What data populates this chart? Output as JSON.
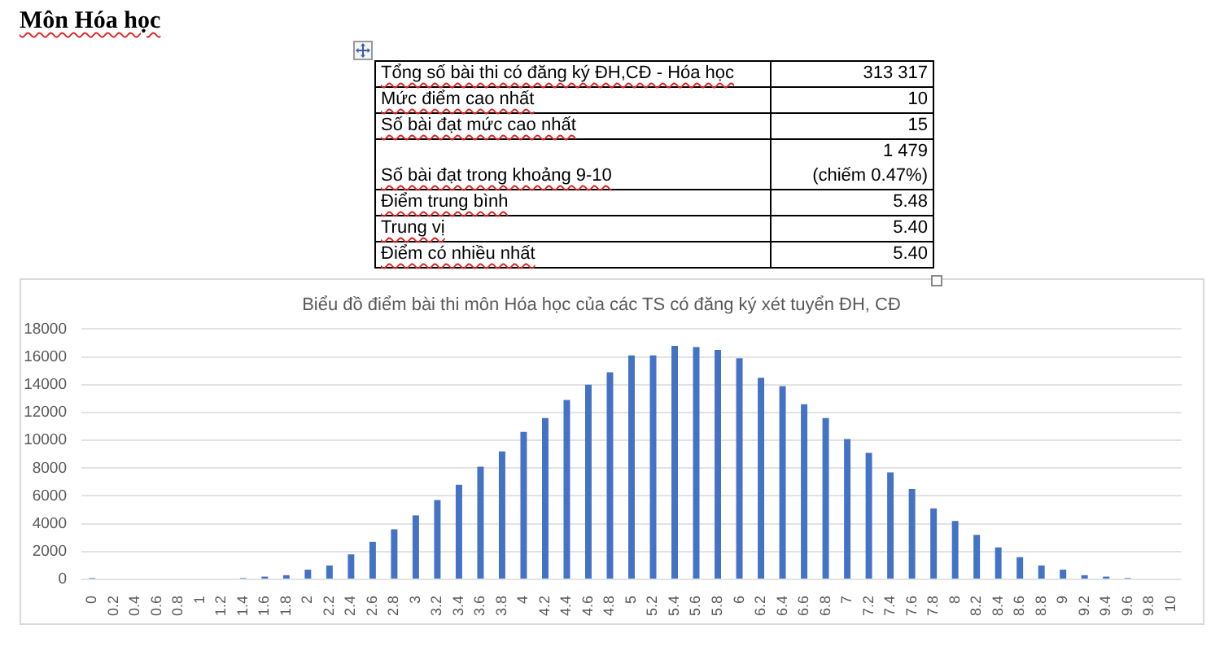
{
  "chart_data": {
    "type": "bar",
    "title": "Biểu đồ điểm bài thi môn Hóa học của các TS có đăng ký xét tuyển ĐH, CĐ",
    "categories": [
      "0",
      "0.2",
      "0.4",
      "0.6",
      "0.8",
      "1",
      "1.2",
      "1.4",
      "1.6",
      "1.8",
      "2",
      "2.2",
      "2.4",
      "2.6",
      "2.8",
      "3",
      "3.2",
      "3.4",
      "3.6",
      "3.8",
      "4",
      "4.2",
      "4.4",
      "4.6",
      "4.8",
      "5",
      "5.2",
      "5.4",
      "5.6",
      "5.8",
      "6",
      "6.2",
      "6.4",
      "6.6",
      "6.8",
      "7",
      "7.2",
      "7.4",
      "7.6",
      "7.8",
      "8",
      "8.2",
      "8.4",
      "8.6",
      "8.8",
      "9",
      "9.2",
      "9.4",
      "9.6",
      "9.8",
      "10"
    ],
    "values": [
      100,
      0,
      0,
      0,
      0,
      0,
      0,
      100,
      200,
      300,
      700,
      1000,
      1800,
      2700,
      3600,
      4600,
      5700,
      6800,
      8100,
      9200,
      10600,
      11600,
      12900,
      14000,
      14900,
      16100,
      16100,
      16800,
      16700,
      16500,
      15900,
      14500,
      13900,
      12600,
      11600,
      10100,
      9100,
      7700,
      6500,
      5100,
      4200,
      3200,
      2300,
      1600,
      1000,
      700,
      300,
      200,
      100,
      0,
      0
    ],
    "color": "#4472c4",
    "ylim": [
      0,
      18000
    ],
    "yticks": [
      0,
      2000,
      4000,
      6000,
      8000,
      10000,
      12000,
      14000,
      16000,
      18000
    ],
    "grid": "y",
    "legend": false,
    "annotations": [
      "Môn Hóa học",
      "Tổng số bài thi có đăng ký ĐH,CĐ - Hóa học",
      "313 317",
      "Mức điểm cao nhất",
      "10",
      "Số bài đạt mức cao nhất",
      "15",
      "Số bài đạt trong khoảng 9-10",
      "1 479\n(chiếm 0.47%)",
      "Điểm trung bình",
      "5.48",
      "Trung vị",
      "5.40",
      "Điểm có nhiều nhất",
      "5.40"
    ]
  }
}
